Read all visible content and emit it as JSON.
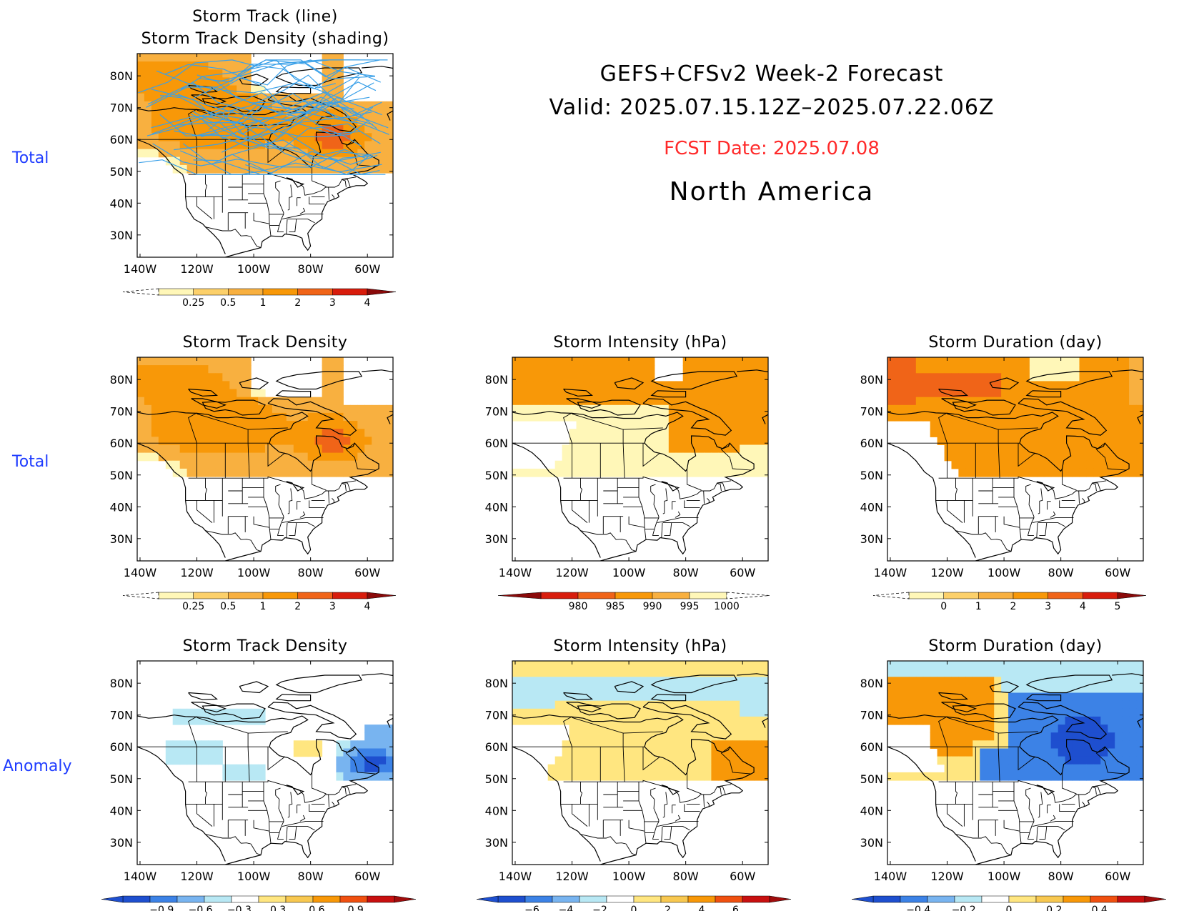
{
  "header": {
    "title_line1": "GEFS+CFSv2 Week-2 Forecast",
    "title_line2": "Valid: 2025.07.15.12Z–2025.07.22.06Z",
    "fcst_date": "FCST Date: 2025.07.08",
    "region": "North America"
  },
  "row_labels": [
    "Total",
    "Total",
    "Anomaly"
  ],
  "axes": {
    "lat_ticks": [
      "80N",
      "70N",
      "60N",
      "50N",
      "40N",
      "30N"
    ],
    "lon_ticks": [
      "140W",
      "120W",
      "100W",
      "80W",
      "60W"
    ]
  },
  "colors": {
    "label_blue": "#1f3cff",
    "fcst_red": "#ff2a2a",
    "track_line": "#3aa0e8",
    "seq_density": [
      "#fff7b8",
      "#fcd06a",
      "#f8b040",
      "#f89808",
      "#f06418",
      "#d81c0c",
      "#a00c0c"
    ],
    "seq_intensity": [
      "#fff7b8",
      "#f8b040",
      "#f89808",
      "#f06418",
      "#d81c0c",
      "#a00c0c"
    ],
    "div_anom": [
      "#1e4fcf",
      "#3c82e6",
      "#78b4f0",
      "#b8e8f4",
      "#ffffff",
      "#ffe680",
      "#f8c850",
      "#f89808",
      "#f05010",
      "#c81010"
    ]
  },
  "panels": [
    {
      "id": "p1",
      "title": [
        "Storm Track (line)",
        "Storm Track Density (shading)"
      ],
      "field": "density",
      "tracks": true,
      "colorbar": {
        "scheme": "seq",
        "labels": [
          "0.25",
          "0.5",
          "1",
          "2",
          "3",
          "4"
        ]
      }
    },
    {
      "id": "p2",
      "title": [
        "Storm Track Density"
      ],
      "field": "density",
      "tracks": false,
      "colorbar": {
        "scheme": "seq",
        "labels": [
          "0.25",
          "0.5",
          "1",
          "2",
          "3",
          "4"
        ]
      }
    },
    {
      "id": "p3",
      "title": [
        "Storm Intensity (hPa)"
      ],
      "field": "intensity",
      "tracks": false,
      "colorbar": {
        "scheme": "seqrev",
        "labels": [
          "980",
          "985",
          "990",
          "995",
          "1000"
        ]
      }
    },
    {
      "id": "p4",
      "title": [
        "Storm Duration (day)"
      ],
      "field": "duration",
      "tracks": false,
      "colorbar": {
        "scheme": "seq",
        "labels": [
          "0",
          "1",
          "2",
          "3",
          "4",
          "5"
        ]
      }
    },
    {
      "id": "p5",
      "title": [
        "Storm Track Density"
      ],
      "field": "anom_density",
      "tracks": false,
      "colorbar": {
        "scheme": "div",
        "labels": [
          "−0.9",
          "−0.6",
          "−0.3",
          "0.3",
          "0.6",
          "0.9"
        ]
      }
    },
    {
      "id": "p6",
      "title": [
        "Storm Intensity (hPa)"
      ],
      "field": "anom_intensity",
      "tracks": false,
      "colorbar": {
        "scheme": "div",
        "labels": [
          "−6",
          "−4",
          "−2",
          "0",
          "2",
          "4",
          "6"
        ]
      }
    },
    {
      "id": "p7",
      "title": [
        "Storm Duration (day)"
      ],
      "field": "anom_duration",
      "tracks": false,
      "colorbar": {
        "scheme": "div",
        "labels": [
          "−0.4",
          "−0.2",
          "0",
          "0.2",
          "0.4"
        ]
      }
    }
  ]
}
